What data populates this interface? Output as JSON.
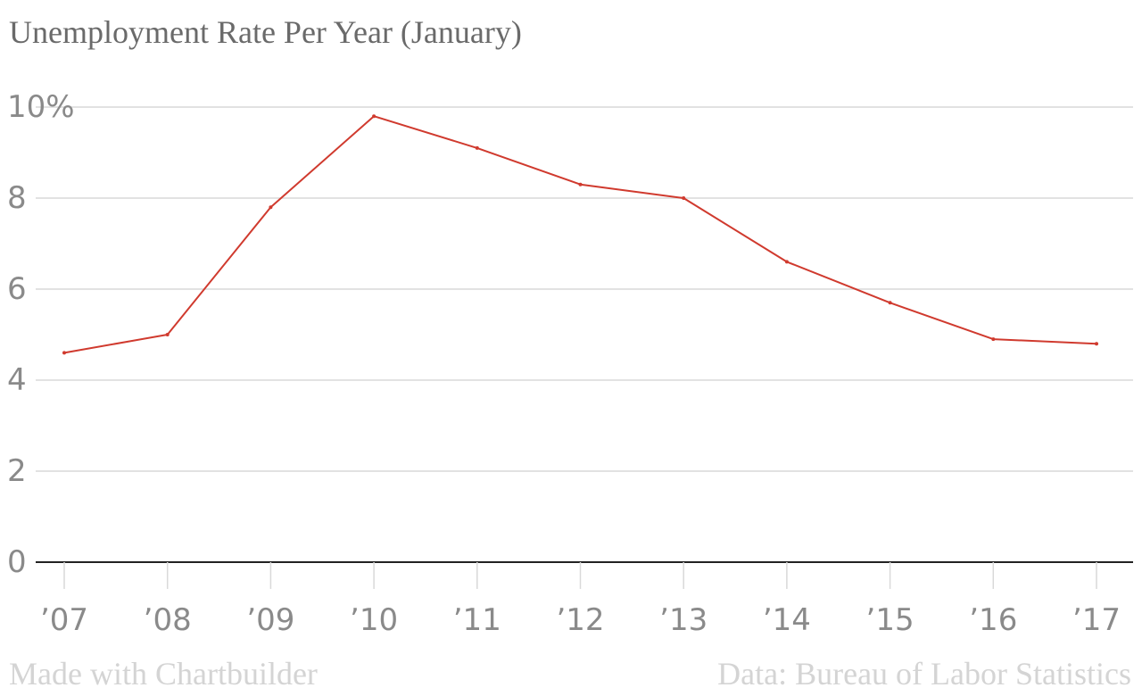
{
  "chart_data": {
    "type": "line",
    "title": "Unemployment Rate Per Year (January)",
    "xlabel": "",
    "ylabel": "",
    "categories": [
      "’07",
      "’08",
      "’09",
      "’10",
      "’11",
      "’12",
      "’13",
      "’14",
      "’15",
      "’16",
      "’17"
    ],
    "series": [
      {
        "values": [
          4.6,
          5.0,
          7.8,
          9.8,
          9.1,
          8.3,
          8.0,
          6.6,
          5.7,
          4.9,
          4.8
        ]
      }
    ],
    "ylim": [
      0,
      10
    ],
    "yticks": [
      0,
      2,
      4,
      6,
      8,
      10
    ],
    "ytick_labels": [
      "0",
      "2",
      "4",
      "6",
      "8",
      "10%"
    ],
    "grid": true,
    "legend": "none",
    "colors": {
      "line": "#d03a2e",
      "grid": "#d9d9d9",
      "axis": "#222222",
      "tick_text": "#8a8a8a",
      "title_text": "#6a6a6a",
      "footer_text": "#d4d4d4"
    }
  },
  "footer": {
    "left": "Made with Chartbuilder",
    "right": "Data: Bureau of Labor Statistics"
  }
}
